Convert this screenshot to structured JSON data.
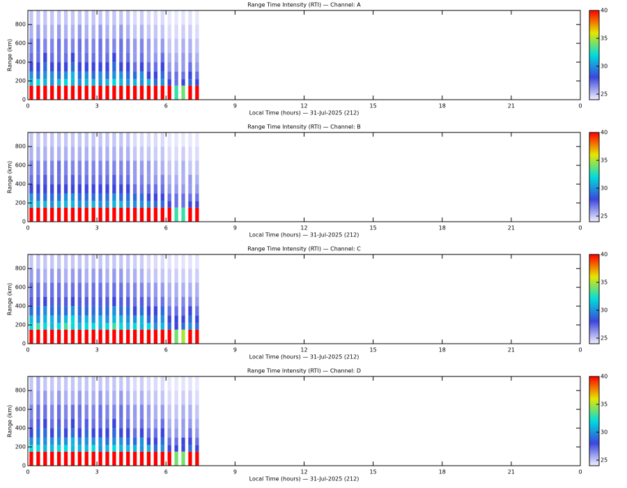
{
  "chart_data": [
    {
      "type": "heatmap",
      "title": "Range Time Intensity (RTI) — Channel: A",
      "xlabel": "Local Time (hours) — 31-Jul-2025 (212)",
      "ylabel": "Range (km)",
      "x": [
        0.15,
        0.45,
        0.75,
        1.05,
        1.35,
        1.65,
        1.95,
        2.25,
        2.55,
        2.85,
        3.15,
        3.45,
        3.75,
        4.05,
        4.35,
        4.65,
        4.95,
        5.25,
        5.55,
        5.85,
        6.15,
        6.45,
        6.75,
        7.05,
        7.35
      ],
      "y_edges": [
        0,
        150,
        220,
        300,
        400,
        500,
        650,
        800,
        950
      ],
      "z": [
        [
          40,
          40,
          40,
          40,
          40,
          40,
          40,
          40,
          40,
          40,
          40,
          40,
          40,
          40,
          40,
          40,
          40,
          40,
          40,
          40,
          40,
          33,
          34,
          40,
          40
        ],
        [
          31,
          32,
          31,
          30,
          31,
          32,
          31,
          30,
          31,
          31,
          30,
          31,
          32,
          31,
          30,
          31,
          30,
          31,
          29,
          30,
          28,
          27,
          28,
          29,
          28
        ],
        [
          30,
          29,
          30,
          30,
          29,
          30,
          31,
          29,
          30,
          29,
          30,
          29,
          30,
          30,
          29,
          29,
          30,
          28,
          28,
          29,
          27,
          27,
          27,
          28,
          27
        ],
        [
          28,
          28,
          29,
          28,
          28,
          28,
          29,
          28,
          28,
          28,
          28,
          28,
          29,
          28,
          28,
          27,
          28,
          27,
          27,
          28,
          26,
          26,
          26,
          27,
          26
        ],
        [
          27,
          27,
          28,
          27,
          27,
          27,
          28,
          27,
          27,
          27,
          27,
          27,
          28,
          27,
          27,
          26,
          27,
          26,
          26,
          27,
          25.5,
          25.5,
          26,
          26,
          25.5
        ],
        [
          26.5,
          27,
          26.5,
          26.5,
          27,
          26.5,
          26.5,
          27,
          26.5,
          26.5,
          27,
          26.5,
          26.5,
          27,
          26.5,
          26,
          26.5,
          26,
          25.5,
          26,
          25,
          25,
          25.5,
          25.5,
          25
        ],
        [
          25.5,
          26,
          25.5,
          25.5,
          26,
          25.5,
          25.5,
          26,
          25.5,
          25.5,
          26,
          25.5,
          25.5,
          26,
          25.5,
          25,
          25.5,
          25,
          25,
          25,
          24.5,
          24.5,
          24.8,
          24.8,
          24.5
        ],
        [
          25,
          25,
          25,
          25,
          25,
          25,
          25,
          25,
          25,
          25,
          25,
          25,
          25,
          25,
          25,
          24.5,
          24.8,
          24.5,
          24.5,
          24.5,
          24.2,
          24.2,
          24.3,
          24.3,
          24.2
        ]
      ],
      "xlim": [
        0,
        24
      ],
      "xticks": [
        0,
        3,
        6,
        9,
        12,
        15,
        18,
        21,
        {
          "value": 24,
          "label": "0"
        }
      ],
      "ylim": [
        0,
        950
      ],
      "yticks": [
        0,
        200,
        400,
        600,
        800
      ],
      "clim": [
        24,
        40
      ],
      "cticks": [
        25,
        30,
        35,
        40
      ],
      "colormap": [
        "#f0f0ff",
        "#3c46dc",
        "#00dcdc",
        "#e6e600",
        "#ff0000"
      ]
    },
    {
      "type": "heatmap",
      "title": "Range Time Intensity (RTI) — Channel: B",
      "xlabel": "Local Time (hours) — 31-Jul-2025 (212)",
      "ylabel": "Range (km)",
      "x": [
        0.15,
        0.45,
        0.75,
        1.05,
        1.35,
        1.65,
        1.95,
        2.25,
        2.55,
        2.85,
        3.15,
        3.45,
        3.75,
        4.05,
        4.35,
        4.65,
        4.95,
        5.25,
        5.55,
        5.85,
        6.15,
        6.45,
        6.75,
        7.05,
        7.35
      ],
      "y_edges": [
        0,
        150,
        220,
        300,
        400,
        500,
        650,
        800,
        950
      ],
      "z": [
        [
          40,
          40,
          40,
          40,
          40,
          40,
          40,
          40,
          40,
          40,
          40,
          40,
          40,
          40,
          40,
          40,
          40,
          40,
          40,
          40,
          40,
          33,
          33,
          40,
          40
        ],
        [
          31,
          31,
          31,
          30,
          31,
          31,
          31,
          30,
          30,
          31,
          30,
          30,
          31,
          31,
          30,
          30,
          30,
          30,
          29,
          29,
          28,
          27,
          27,
          28,
          28
        ],
        [
          30,
          29,
          29,
          29,
          29,
          30,
          30,
          29,
          29,
          29,
          29,
          29,
          30,
          29,
          29,
          29,
          29,
          28,
          28,
          28,
          27,
          27,
          27,
          27,
          27
        ],
        [
          28,
          28,
          28,
          28,
          28,
          28,
          28,
          28,
          28,
          28,
          28,
          28,
          28,
          28,
          28,
          27,
          27,
          27,
          27,
          27,
          26,
          26,
          26,
          26,
          26
        ],
        [
          27,
          27,
          27.5,
          27,
          27,
          27,
          27.5,
          27,
          27,
          27,
          27,
          27,
          27.5,
          27,
          27,
          26,
          26.5,
          26,
          26,
          26.5,
          25.5,
          25.5,
          25.5,
          26,
          25.5
        ],
        [
          26.5,
          26.5,
          26.5,
          26.5,
          27,
          26.5,
          26.5,
          26.5,
          26.5,
          26.5,
          26.5,
          26.5,
          26.5,
          26.5,
          26.5,
          26,
          26,
          26,
          25.5,
          25.5,
          25,
          25,
          25.5,
          25,
          25
        ],
        [
          25.5,
          25.5,
          25.5,
          25.5,
          25.5,
          25.5,
          25.5,
          25.5,
          25.5,
          25.5,
          25.5,
          25.5,
          25.5,
          25.5,
          25.5,
          25,
          25,
          25,
          24.8,
          25,
          24.5,
          24.5,
          24.8,
          24.5,
          24.5
        ],
        [
          25,
          25,
          25,
          25,
          25,
          25,
          25,
          25,
          25,
          25,
          25,
          25,
          25,
          25,
          25,
          24.5,
          24.5,
          24.5,
          24.5,
          24.5,
          24.2,
          24.2,
          24.2,
          24.2,
          24.2
        ]
      ],
      "xlim": [
        0,
        24
      ],
      "xticks": [
        0,
        3,
        6,
        9,
        12,
        15,
        18,
        21,
        {
          "value": 24,
          "label": "0"
        }
      ],
      "ylim": [
        0,
        950
      ],
      "yticks": [
        0,
        200,
        400,
        600,
        800
      ],
      "clim": [
        24,
        40
      ],
      "cticks": [
        25,
        30,
        35,
        40
      ],
      "colormap": [
        "#f0f0ff",
        "#3c46dc",
        "#00dcdc",
        "#e6e600",
        "#ff0000"
      ]
    },
    {
      "type": "heatmap",
      "title": "Range Time Intensity (RTI) — Channel: C",
      "xlabel": "Local Time (hours) — 31-Jul-2025 (212)",
      "ylabel": "Range (km)",
      "x": [
        0.15,
        0.45,
        0.75,
        1.05,
        1.35,
        1.65,
        1.95,
        2.25,
        2.55,
        2.85,
        3.15,
        3.45,
        3.75,
        4.05,
        4.35,
        4.65,
        4.95,
        5.25,
        5.55,
        5.85,
        6.15,
        6.45,
        6.75,
        7.05,
        7.35
      ],
      "y_edges": [
        0,
        150,
        220,
        300,
        400,
        500,
        650,
        800,
        950
      ],
      "z": [
        [
          40,
          40,
          40,
          40,
          40,
          40,
          40,
          40,
          40,
          40,
          40,
          40,
          40,
          40,
          40,
          40,
          40,
          40,
          40,
          40,
          40,
          34,
          35,
          40,
          40
        ],
        [
          32,
          33,
          32,
          31,
          32,
          33,
          32,
          31,
          32,
          32,
          31,
          32,
          33,
          32,
          31,
          32,
          31,
          32,
          30,
          31,
          29,
          28,
          29,
          30,
          29
        ],
        [
          31,
          30,
          31,
          31,
          30,
          31,
          32,
          30,
          31,
          30,
          31,
          30,
          31,
          31,
          30,
          30,
          31,
          29,
          29,
          30,
          28,
          28,
          28,
          29,
          28
        ],
        [
          29,
          29,
          30,
          29,
          29,
          29,
          30,
          29,
          29,
          29,
          29,
          29,
          30,
          29,
          29,
          28,
          29,
          28,
          28,
          29,
          27,
          27,
          27,
          28,
          27
        ],
        [
          27.5,
          27.5,
          28,
          27.5,
          27.5,
          27.5,
          28,
          27.5,
          27.5,
          27.5,
          27.5,
          27.5,
          28,
          27.5,
          27.5,
          27,
          27.5,
          27,
          26.5,
          27,
          26,
          26,
          26.5,
          26.5,
          26
        ],
        [
          27,
          27,
          26.5,
          27,
          27,
          26.5,
          27,
          27,
          26.5,
          27,
          27,
          26.5,
          27,
          27,
          26.5,
          26.5,
          26.5,
          26,
          26,
          26,
          25.5,
          25.5,
          25.5,
          25.5,
          25.5
        ],
        [
          26,
          26,
          25.5,
          26,
          26,
          25.5,
          26,
          26,
          25.5,
          26,
          26,
          25.5,
          26,
          26,
          25.5,
          25.5,
          25.5,
          25,
          25,
          25,
          24.8,
          24.8,
          24.8,
          24.8,
          24.8
        ],
        [
          25,
          25,
          25,
          25,
          25,
          25,
          25,
          25,
          25,
          25,
          25,
          25,
          25,
          25,
          25,
          24.8,
          24.8,
          24.5,
          24.5,
          24.5,
          24.3,
          24.3,
          24.3,
          24.3,
          24.3
        ]
      ],
      "xlim": [
        0,
        24
      ],
      "xticks": [
        0,
        3,
        6,
        9,
        12,
        15,
        18,
        21,
        {
          "value": 24,
          "label": "0"
        }
      ],
      "ylim": [
        0,
        950
      ],
      "yticks": [
        0,
        200,
        400,
        600,
        800
      ],
      "clim": [
        24,
        40
      ],
      "cticks": [
        25,
        30,
        35,
        40
      ],
      "colormap": [
        "#f0f0ff",
        "#3c46dc",
        "#00dcdc",
        "#e6e600",
        "#ff0000"
      ]
    },
    {
      "type": "heatmap",
      "title": "Range Time Intensity (RTI) — Channel: D",
      "xlabel": "Local Time (hours) — 31-Jul-2025 (212)",
      "ylabel": "Range (km)",
      "x": [
        0.15,
        0.45,
        0.75,
        1.05,
        1.35,
        1.65,
        1.95,
        2.25,
        2.55,
        2.85,
        3.15,
        3.45,
        3.75,
        4.05,
        4.35,
        4.65,
        4.95,
        5.25,
        5.55,
        5.85,
        6.15,
        6.45,
        6.75,
        7.05,
        7.35
      ],
      "y_edges": [
        0,
        150,
        220,
        300,
        400,
        500,
        650,
        800,
        950
      ],
      "z": [
        [
          40,
          40,
          40,
          40,
          40,
          40,
          40,
          40,
          40,
          40,
          40,
          40,
          40,
          40,
          40,
          40,
          40,
          40,
          40,
          40,
          40,
          34,
          34,
          40,
          40
        ],
        [
          32,
          32,
          31,
          31,
          32,
          32,
          31,
          31,
          31,
          32,
          30,
          31,
          32,
          31,
          31,
          31,
          30,
          31,
          29,
          30,
          28,
          28,
          28,
          29,
          28
        ],
        [
          30,
          30,
          30,
          30,
          30,
          30,
          31,
          30,
          30,
          30,
          30,
          29,
          30,
          30,
          29,
          29,
          30,
          28,
          28,
          29,
          27,
          27,
          28,
          28,
          27
        ],
        [
          28,
          29,
          29,
          28,
          29,
          28,
          29,
          28,
          29,
          28,
          28,
          28,
          29,
          28,
          28,
          27,
          28,
          27,
          27,
          28,
          26,
          26,
          26,
          27,
          26
        ],
        [
          27,
          27.5,
          28,
          27,
          27.5,
          27,
          28,
          27,
          27.5,
          27,
          27,
          27,
          28,
          27,
          27,
          26,
          27,
          26,
          26,
          27,
          25.5,
          25.5,
          26,
          26,
          25.5
        ],
        [
          26.5,
          27,
          27,
          26.5,
          27,
          26.5,
          27,
          27,
          26.5,
          26.5,
          27,
          26.5,
          26.5,
          27,
          26.5,
          26,
          26.5,
          26,
          25.5,
          26,
          25,
          25,
          25.5,
          25.5,
          25
        ],
        [
          25.5,
          26,
          26,
          25.5,
          26,
          25.5,
          25.5,
          26,
          25.5,
          25.5,
          26,
          25.5,
          25.5,
          26,
          25.5,
          25,
          25.5,
          25,
          25,
          25,
          24.5,
          24.5,
          24.8,
          24.8,
          24.5
        ],
        [
          25,
          25.5,
          25,
          25,
          25,
          25,
          25,
          25,
          25,
          25,
          25,
          25,
          25,
          25,
          25,
          24.5,
          24.8,
          24.5,
          24.5,
          24.5,
          24.2,
          24.2,
          24.3,
          24.3,
          24.2
        ]
      ],
      "xlim": [
        0,
        24
      ],
      "xticks": [
        0,
        3,
        6,
        9,
        12,
        15,
        18,
        21,
        {
          "value": 24,
          "label": "0"
        }
      ],
      "ylim": [
        0,
        950
      ],
      "yticks": [
        0,
        200,
        400,
        600,
        800
      ],
      "clim": [
        24,
        40
      ],
      "cticks": [
        25,
        30,
        35,
        40
      ],
      "colormap": [
        "#f0f0ff",
        "#3c46dc",
        "#00dcdc",
        "#e6e600",
        "#ff0000"
      ]
    }
  ]
}
